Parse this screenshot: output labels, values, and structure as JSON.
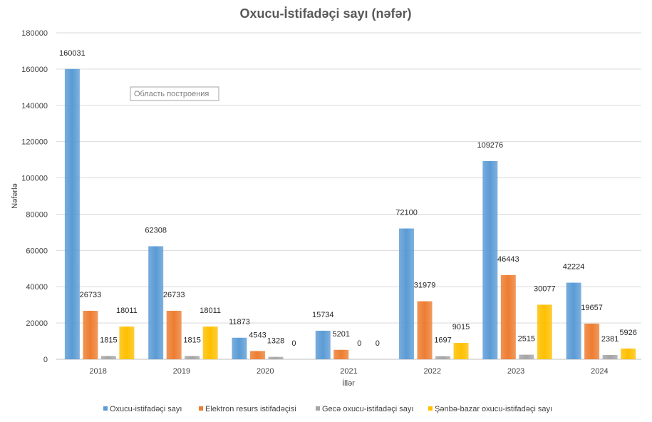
{
  "chart_data": {
    "type": "bar",
    "title": "Oxucu-İstifadəçi sayı (nəfər)",
    "xlabel": "İllər",
    "ylabel": "Nəfərlə",
    "ylim": [
      0,
      180000
    ],
    "yticks": [
      0,
      20000,
      40000,
      60000,
      80000,
      100000,
      120000,
      140000,
      160000,
      180000
    ],
    "categories": [
      "2018",
      "2019",
      "2020",
      "2021",
      "2022",
      "2023",
      "2024"
    ],
    "series": [
      {
        "name": "Oxucu-istifadəçi sayı",
        "color": "#5b9bd5",
        "values": [
          160031,
          62308,
          11873,
          15734,
          72100,
          109276,
          42224
        ]
      },
      {
        "name": "Elektron resurs istifadəçisi",
        "color": "#ed7d31",
        "values": [
          26733,
          26733,
          4543,
          5201,
          31979,
          46443,
          19657
        ]
      },
      {
        "name": "Gecə oxucu-istifadəçi sayı",
        "color": "#a5a5a5",
        "values": [
          1815,
          1815,
          1328,
          0,
          1697,
          2515,
          2381
        ]
      },
      {
        "name": "Şənbə-bazar oxucu-istifadəçi sayı",
        "color": "#ffc000",
        "values": [
          18011,
          18011,
          0,
          0,
          9015,
          30077,
          5926
        ]
      }
    ],
    "legend_position": "bottom",
    "grid": true,
    "tooltip": "Область построения"
  }
}
